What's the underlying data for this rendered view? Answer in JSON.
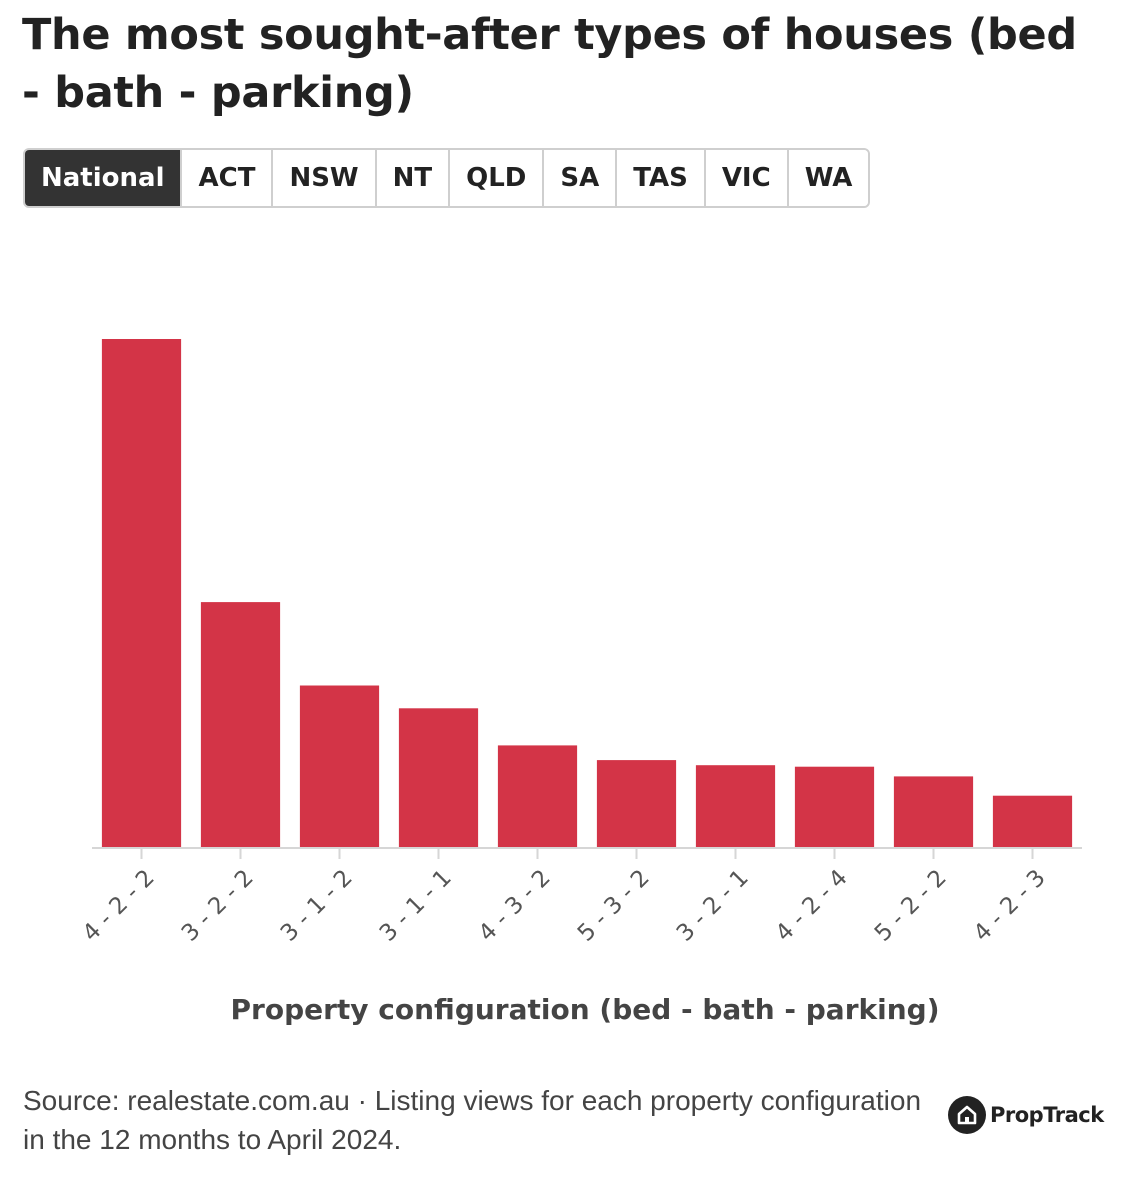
{
  "header": {
    "title": "The most sought-after types of houses (bed - bath - parking)"
  },
  "tabs": [
    {
      "label": "National",
      "active": true
    },
    {
      "label": "ACT",
      "active": false
    },
    {
      "label": "NSW",
      "active": false
    },
    {
      "label": "NT",
      "active": false
    },
    {
      "label": "QLD",
      "active": false
    },
    {
      "label": "SA",
      "active": false
    },
    {
      "label": "TAS",
      "active": false
    },
    {
      "label": "VIC",
      "active": false
    },
    {
      "label": "WA",
      "active": false
    }
  ],
  "chart_data": {
    "type": "bar",
    "title": "The most sought-after types of houses (bed - bath - parking)",
    "xlabel": "Property configuration (bed - bath - parking)",
    "ylabel": "",
    "categories": [
      "4 - 2 - 2",
      "3 - 2 - 2",
      "3 - 1 - 2",
      "3 - 1 - 1",
      "4 - 3 - 2",
      "5 - 3 - 2",
      "3 - 2 - 1",
      "4 - 2 - 4",
      "5 - 2 - 2",
      "4 - 2 - 3"
    ],
    "values": [
      100,
      48.2,
      31.8,
      27.3,
      20.0,
      17.1,
      16.1,
      15.8,
      13.9,
      10.1
    ],
    "value_note": "",
    "ylim": [
      0,
      100
    ],
    "grid": false,
    "bar_color": "#d33447"
  },
  "footer": {
    "source": "Source: realestate.com.au · Listing views for each property configuration in the 12 months to April 2024.",
    "logo_text": "PropTrack"
  },
  "colors": {
    "accent": "#d33447",
    "active_tab_bg": "#333333",
    "text": "#222222"
  }
}
